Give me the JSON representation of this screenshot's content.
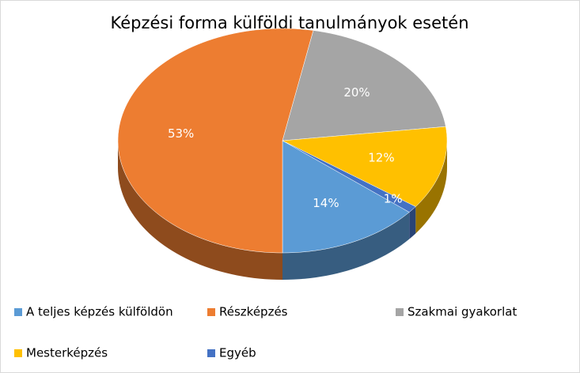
{
  "chart_data": {
    "type": "pie",
    "title": "Képzési forma külföldi tanulmányok esetén",
    "categories": [
      "A teljes képzés külföldön",
      "Részképzés",
      "Szakmai gyakorlat",
      "Mesterképzés",
      "Egyéb"
    ],
    "values": [
      14,
      53,
      20,
      12,
      1
    ],
    "value_labels": [
      "14%",
      "53%",
      "20%",
      "12%",
      "1%"
    ],
    "colors": [
      "#5b9bd5",
      "#ed7d31",
      "#a5a5a5",
      "#ffc000",
      "#4472c4"
    ],
    "legend": "bottom"
  }
}
